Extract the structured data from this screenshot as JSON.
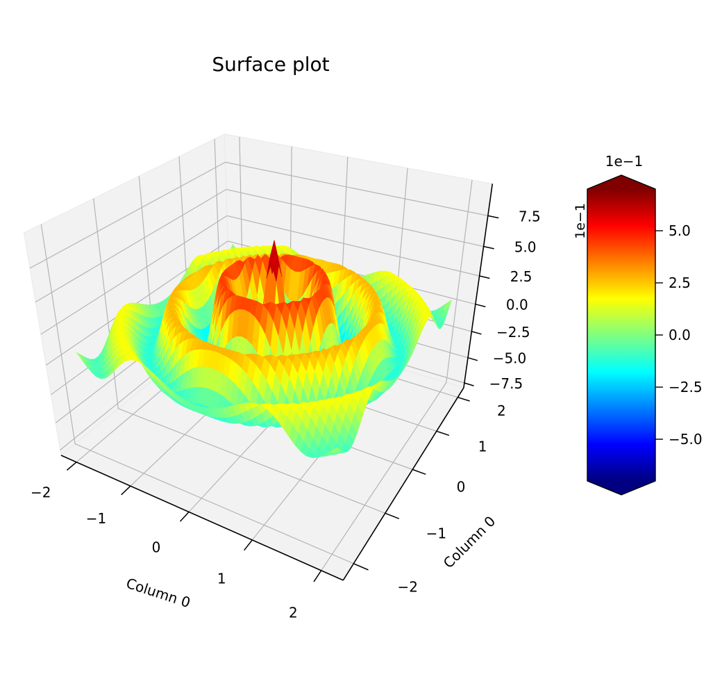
{
  "chart_data": {
    "type": "3d-surface",
    "title": "Surface plot",
    "x_axis": {
      "label": "Column 0",
      "tick_labels": [
        "−2",
        "−1",
        "0",
        "1",
        "2"
      ],
      "tick_values": [
        -2,
        -1,
        0,
        1,
        2
      ],
      "range": [
        -2.3,
        2.3
      ]
    },
    "y_axis": {
      "label": "Column 0",
      "tick_labels": [
        "−2",
        "−1",
        "0",
        "1",
        "2"
      ],
      "tick_values": [
        -2,
        -1,
        0,
        1,
        2
      ],
      "range": [
        -2.3,
        2.3
      ]
    },
    "z_axis": {
      "tick_labels": [
        "7.5",
        "5.0",
        "2.5",
        "0.0",
        "−2.5",
        "−5.0",
        "−7.5"
      ],
      "tick_values": [
        0.75,
        0.5,
        0.25,
        0.0,
        -0.25,
        -0.5,
        -0.75
      ],
      "offset_text": "1e−1",
      "range": [
        -0.8,
        1.0
      ]
    },
    "colorbar": {
      "colormap": "jet",
      "extend": "both",
      "offset_text": "1e−1",
      "tick_labels": [
        "5.0",
        "2.5",
        "0.0",
        "−2.5",
        "−5.0"
      ],
      "tick_values": [
        0.5,
        0.25,
        0.0,
        -0.25,
        -0.5
      ],
      "vmin": -0.7,
      "vmax": 0.7
    },
    "surface": {
      "description": "Radial damped-cosine ripple (sombrero / sinc-like) on a square grid, jet colormap: narrow dark-red spike at the origin, blue moat, concentric red / orange / yellow ridges fading to light-green field with cyan troughs",
      "formula": "z = 0.75 * exp(-0.65*r) * (cos(8.5*r) + 0.25)/1.25,  r = sqrt(x^2 + y^2)",
      "amplitude": 0.75,
      "wavenumber": 8.5,
      "damping": 0.65,
      "offset": 0.25,
      "domain_x": [
        -2,
        2
      ],
      "domain_y": [
        -2,
        2
      ],
      "grid_cells": 50,
      "z_peak": 0.75
    },
    "style": {
      "pane_color": "#f2f2f2",
      "pane_edge_color": "#e9e9e9",
      "grid_color": "#b4b4b4",
      "axis_color": "#000000",
      "text_color": "#000000"
    }
  }
}
